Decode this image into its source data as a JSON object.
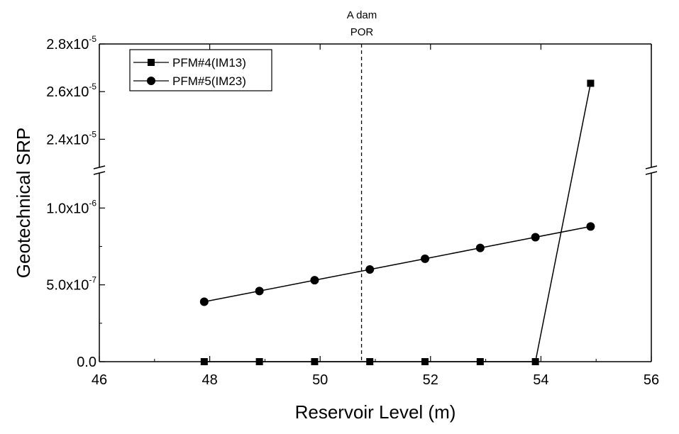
{
  "chart_data": {
    "type": "line",
    "title": "",
    "xlabel": "Reservoir Level (m)",
    "ylabel": "Geotechnical SRP",
    "xlim": [
      46,
      56
    ],
    "x_ticks": [
      46,
      48,
      50,
      52,
      54,
      56
    ],
    "x_tick_labels": [
      "46",
      "48",
      "50",
      "52",
      "54",
      "56"
    ],
    "y_axis_break": true,
    "y_lower": {
      "ylim": [
        0,
        1.2e-06
      ],
      "ticks": [
        {
          "value": 0,
          "mantissa": "0.0",
          "exp": ""
        },
        {
          "value": 5e-07,
          "mantissa": "5.0x10",
          "exp": "-7"
        },
        {
          "value": 1e-06,
          "mantissa": "1.0x10",
          "exp": "-6"
        }
      ]
    },
    "y_upper": {
      "ylim": [
        2.3e-05,
        2.8e-05
      ],
      "ticks": [
        {
          "value": 2.4e-05,
          "mantissa": "2.4x10",
          "exp": "-5"
        },
        {
          "value": 2.6e-05,
          "mantissa": "2.6x10",
          "exp": "-5"
        },
        {
          "value": 2.8e-05,
          "mantissa": "2.8x10",
          "exp": "-5"
        }
      ]
    },
    "series": [
      {
        "name": "PFM#4(IM13)",
        "marker": "square",
        "color": "#000000",
        "x": [
          47.9,
          48.9,
          49.9,
          50.9,
          51.9,
          52.9,
          53.9,
          54.9
        ],
        "y": [
          0,
          0,
          0,
          0,
          0,
          0,
          0,
          2.635e-05
        ]
      },
      {
        "name": "PFM#5(IM23)",
        "marker": "circle",
        "color": "#000000",
        "x": [
          47.9,
          48.9,
          49.9,
          50.9,
          51.9,
          52.9,
          53.9,
          54.9
        ],
        "y": [
          3.9e-07,
          4.6e-07,
          5.3e-07,
          6e-07,
          6.7e-07,
          7.4e-07,
          8.1e-07,
          8.8e-07
        ]
      }
    ],
    "vline": {
      "x": 50.75,
      "style": "dashed",
      "label_line1": "A dam",
      "label_line2": "POR"
    },
    "legend": {
      "placement": "top-left"
    },
    "grid": false
  }
}
